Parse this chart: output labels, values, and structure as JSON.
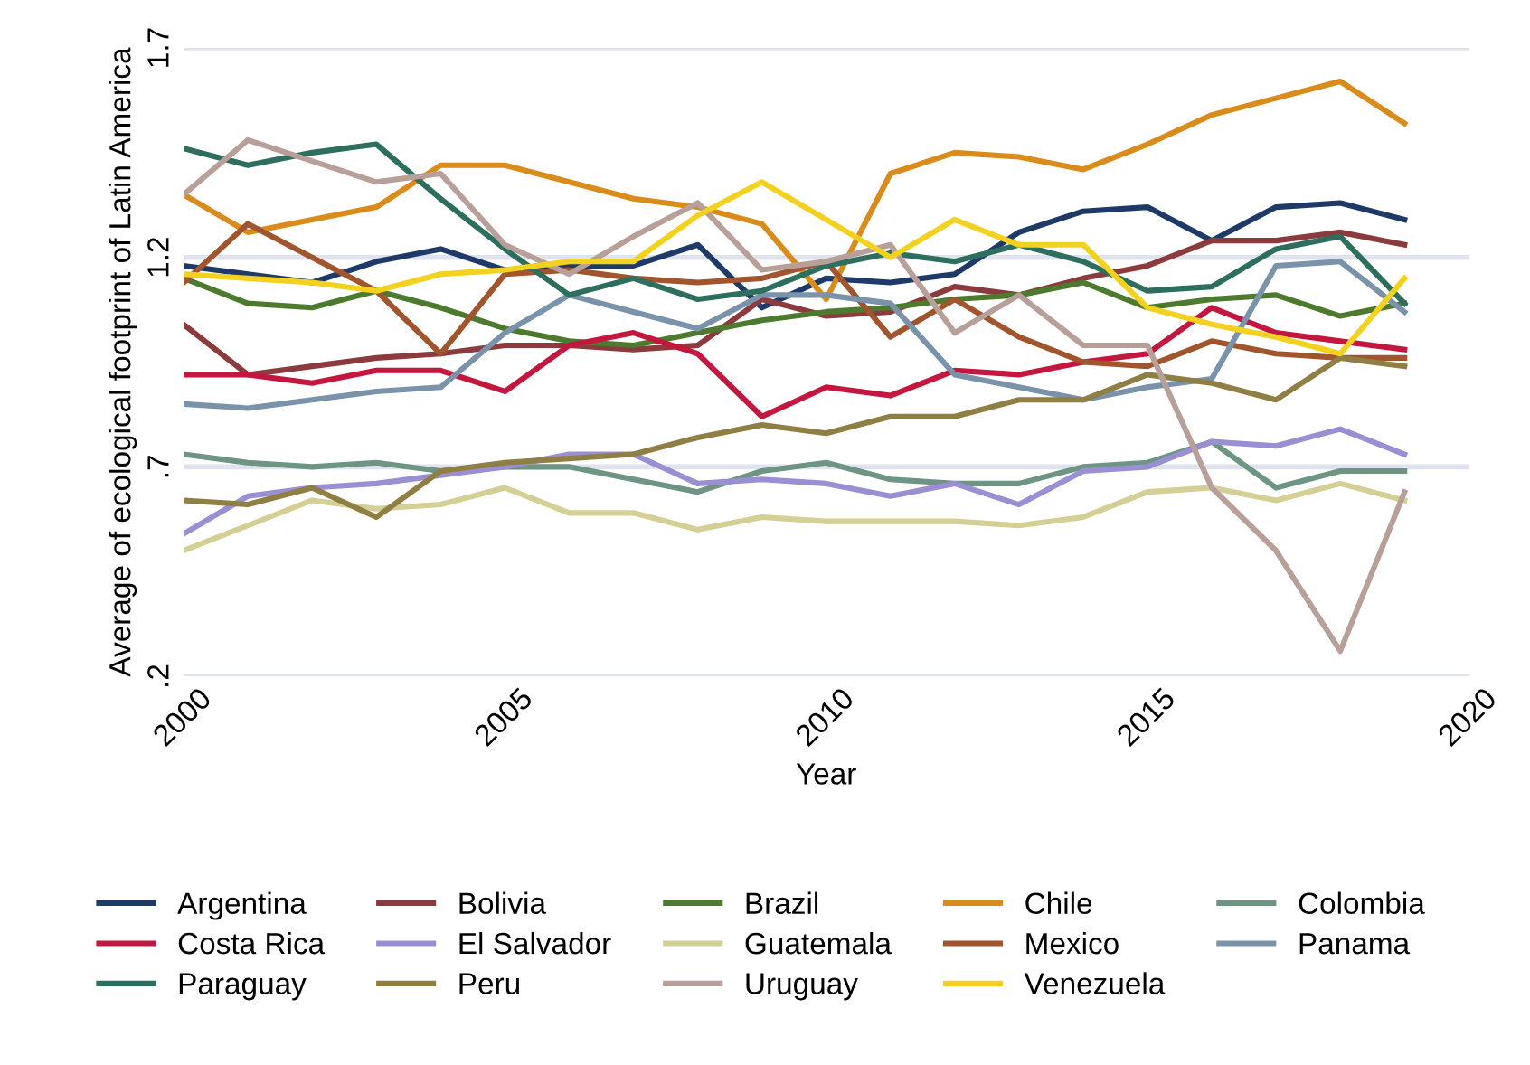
{
  "chart_data": {
    "type": "line",
    "xlabel": "Year",
    "ylabel": "Average of ecological footprint of Latin America",
    "x": [
      2000,
      2001,
      2002,
      2003,
      2004,
      2005,
      2006,
      2007,
      2008,
      2009,
      2010,
      2011,
      2012,
      2013,
      2014,
      2015,
      2016,
      2017,
      2018,
      2019
    ],
    "xlim": [
      2000,
      2020
    ],
    "xticks": [
      2000,
      2005,
      2010,
      2015,
      2020
    ],
    "ylim": [
      0.2,
      1.7
    ],
    "yticks": [
      {
        "value": 0.2,
        "label": ".2"
      },
      {
        "value": 0.7,
        "label": ".7"
      },
      {
        "value": 1.2,
        "label": "1.2"
      },
      {
        "value": 1.7,
        "label": "1.7"
      }
    ],
    "grid": "y",
    "legend": "bottom",
    "marker": "none",
    "line_style": "solid",
    "series": [
      {
        "name": "Argentina",
        "color": "#1f3a68",
        "values": [
          1.18,
          1.16,
          1.14,
          1.19,
          1.22,
          1.17,
          1.18,
          1.18,
          1.23,
          1.08,
          1.15,
          1.14,
          1.16,
          1.26,
          1.31,
          1.32,
          1.24,
          1.32,
          1.33,
          1.29
        ]
      },
      {
        "name": "Bolivia",
        "color": "#8b3a3e",
        "values": [
          1.04,
          0.92,
          0.94,
          0.96,
          0.97,
          0.99,
          0.99,
          0.98,
          0.99,
          1.1,
          1.06,
          1.07,
          1.13,
          1.11,
          1.15,
          1.18,
          1.24,
          1.24,
          1.26,
          1.23
        ]
      },
      {
        "name": "Brazil",
        "color": "#4d7a2e",
        "values": [
          1.15,
          1.09,
          1.08,
          1.12,
          1.08,
          1.03,
          1.0,
          0.99,
          1.02,
          1.05,
          1.07,
          1.08,
          1.1,
          1.11,
          1.14,
          1.08,
          1.1,
          1.11,
          1.06,
          1.09
        ]
      },
      {
        "name": "Chile",
        "color": "#d98c1c",
        "values": [
          1.35,
          1.26,
          1.29,
          1.32,
          1.42,
          1.42,
          1.38,
          1.34,
          1.32,
          1.28,
          1.1,
          1.4,
          1.45,
          1.44,
          1.41,
          1.47,
          1.54,
          1.58,
          1.62,
          1.52
        ]
      },
      {
        "name": "Colombia",
        "color": "#6e9484",
        "values": [
          0.73,
          0.71,
          0.7,
          0.71,
          0.69,
          0.7,
          0.7,
          0.67,
          0.64,
          0.69,
          0.71,
          0.67,
          0.66,
          0.66,
          0.7,
          0.71,
          0.76,
          0.65,
          0.69,
          0.69
        ]
      },
      {
        "name": "Costa Rica",
        "color": "#c4173f",
        "values": [
          0.92,
          0.92,
          0.9,
          0.93,
          0.93,
          0.88,
          0.99,
          1.02,
          0.97,
          0.82,
          0.89,
          0.87,
          0.93,
          0.92,
          0.95,
          0.97,
          1.08,
          1.02,
          1.0,
          0.98
        ]
      },
      {
        "name": "El Salvador",
        "color": "#9b8fd4",
        "values": [
          0.54,
          0.63,
          0.65,
          0.66,
          0.68,
          0.7,
          0.73,
          0.73,
          0.66,
          0.67,
          0.66,
          0.63,
          0.66,
          0.61,
          0.69,
          0.7,
          0.76,
          0.75,
          0.79,
          0.73
        ]
      },
      {
        "name": "Guatemala",
        "color": "#d4cf94",
        "values": [
          0.5,
          0.56,
          0.62,
          0.6,
          0.61,
          0.65,
          0.59,
          0.59,
          0.55,
          0.58,
          0.57,
          0.57,
          0.57,
          0.56,
          0.58,
          0.64,
          0.65,
          0.62,
          0.66,
          0.62
        ]
      },
      {
        "name": "Mexico",
        "color": "#a0552e",
        "values": [
          1.14,
          1.28,
          1.2,
          1.12,
          0.97,
          1.16,
          1.17,
          1.15,
          1.14,
          1.15,
          1.19,
          1.01,
          1.1,
          1.01,
          0.95,
          0.94,
          1.0,
          0.97,
          0.96,
          0.96
        ]
      },
      {
        "name": "Panama",
        "color": "#7a93ab",
        "values": [
          0.85,
          0.84,
          0.86,
          0.88,
          0.89,
          1.02,
          1.11,
          1.07,
          1.03,
          1.11,
          1.11,
          1.09,
          0.92,
          0.89,
          0.86,
          0.89,
          0.91,
          1.18,
          1.19,
          1.07
        ]
      },
      {
        "name": "Paraguay",
        "color": "#2e6e5e",
        "values": [
          1.46,
          1.42,
          1.45,
          1.47,
          1.34,
          1.22,
          1.11,
          1.15,
          1.1,
          1.12,
          1.18,
          1.21,
          1.19,
          1.23,
          1.19,
          1.12,
          1.13,
          1.22,
          1.25,
          1.09
        ]
      },
      {
        "name": "Peru",
        "color": "#8f7f45",
        "values": [
          0.62,
          0.61,
          0.65,
          0.58,
          0.69,
          0.71,
          0.72,
          0.73,
          0.77,
          0.8,
          0.78,
          0.82,
          0.82,
          0.86,
          0.86,
          0.92,
          0.9,
          0.86,
          0.96,
          0.94
        ]
      },
      {
        "name": "Uruguay",
        "color": "#b8a09a",
        "values": [
          1.35,
          1.48,
          1.43,
          1.38,
          1.4,
          1.23,
          1.16,
          1.25,
          1.33,
          1.17,
          1.19,
          1.23,
          1.02,
          1.11,
          0.99,
          0.99,
          0.65,
          0.5,
          0.26,
          0.64
        ]
      },
      {
        "name": "Venezuela",
        "color": "#f2d21e",
        "values": [
          1.16,
          1.15,
          1.14,
          1.12,
          1.16,
          1.17,
          1.19,
          1.19,
          1.3,
          1.38,
          1.29,
          1.2,
          1.29,
          1.23,
          1.23,
          1.08,
          1.04,
          1.01,
          0.97,
          1.15
        ]
      }
    ]
  }
}
